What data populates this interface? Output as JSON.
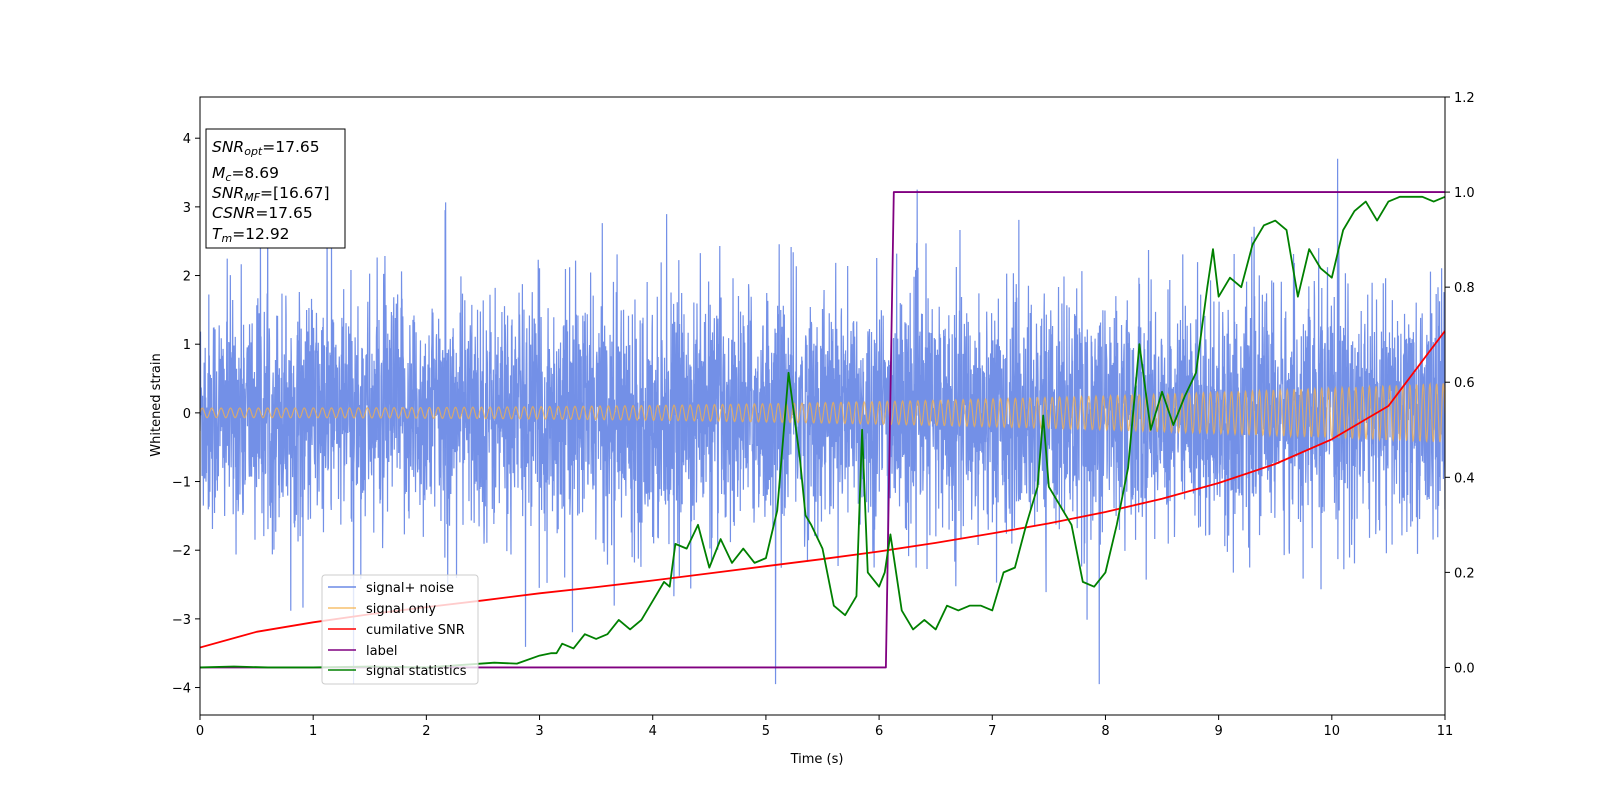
{
  "chart_data": {
    "type": "line",
    "title": "",
    "xlabel": "Time (s)",
    "ylabel": "Whitened strain",
    "xlim": [
      0,
      11
    ],
    "ylim_left": [
      -4.4,
      4.6
    ],
    "ylim_right": [
      -0.1,
      1.2
    ],
    "x_ticks": [
      0,
      1,
      2,
      3,
      4,
      5,
      6,
      7,
      8,
      9,
      10,
      11
    ],
    "y_ticks_left": [
      -4,
      -3,
      -2,
      -1,
      0,
      1,
      2,
      3,
      4
    ],
    "y_ticks_right": [
      0.0,
      0.2,
      0.4,
      0.6,
      0.8,
      1.0,
      1.2
    ],
    "grid": false,
    "legend_position": "lower-left",
    "series": [
      {
        "name": "signal+ noise",
        "axis": "left",
        "color": "#6b8ae6",
        "kind": "noise-band",
        "noise_std": 0.85,
        "noise_max": 3.7,
        "noise_min": -3.95
      },
      {
        "name": "signal only",
        "axis": "left",
        "color": "#f5b04a",
        "kind": "chirp",
        "amplitude_start": 0.07,
        "amplitude_end": 0.43,
        "frequency_start_hz": 12,
        "frequency_end_hz": 17
      },
      {
        "name": "cumilative SNR",
        "axis": "right",
        "color": "#ff0000",
        "kind": "line",
        "x": [
          0,
          0.5,
          1,
          1.5,
          2,
          2.5,
          3,
          3.5,
          4,
          4.5,
          5,
          5.5,
          6,
          6.5,
          7,
          7.5,
          8,
          8.5,
          9,
          9.5,
          10,
          10.5,
          11
        ],
        "y": [
          0.042,
          0.075,
          0.095,
          0.112,
          0.127,
          0.141,
          0.156,
          0.169,
          0.183,
          0.198,
          0.213,
          0.228,
          0.244,
          0.262,
          0.282,
          0.303,
          0.327,
          0.355,
          0.388,
          0.428,
          0.48,
          0.55,
          0.708
        ]
      },
      {
        "name": "label",
        "axis": "right",
        "color": "#800080",
        "kind": "line",
        "x": [
          0,
          6.06,
          6.13,
          11
        ],
        "y": [
          0,
          0,
          1,
          1
        ]
      },
      {
        "name": "signal statistics",
        "axis": "right",
        "color": "#008000",
        "kind": "line",
        "x": [
          0,
          0.3,
          0.6,
          1,
          1.5,
          2,
          2.3,
          2.6,
          2.8,
          3.0,
          3.1,
          3.15,
          3.2,
          3.3,
          3.4,
          3.5,
          3.6,
          3.7,
          3.8,
          3.9,
          4.0,
          4.1,
          4.15,
          4.2,
          4.3,
          4.4,
          4.5,
          4.6,
          4.7,
          4.8,
          4.9,
          5.0,
          5.1,
          5.2,
          5.3,
          5.35,
          5.4,
          5.5,
          5.6,
          5.7,
          5.8,
          5.85,
          5.9,
          6.0,
          6.05,
          6.1,
          6.2,
          6.3,
          6.4,
          6.5,
          6.6,
          6.7,
          6.8,
          6.9,
          7.0,
          7.1,
          7.2,
          7.3,
          7.4,
          7.45,
          7.5,
          7.6,
          7.7,
          7.8,
          7.9,
          8.0,
          8.1,
          8.2,
          8.3,
          8.4,
          8.5,
          8.6,
          8.7,
          8.8,
          8.9,
          8.95,
          9.0,
          9.1,
          9.2,
          9.3,
          9.4,
          9.5,
          9.6,
          9.7,
          9.8,
          9.9,
          10.0,
          10.1,
          10.2,
          10.3,
          10.4,
          10.5,
          10.6,
          10.7,
          10.8,
          10.9,
          11
        ],
        "y": [
          0,
          0.002,
          0,
          0,
          0.002,
          0,
          0.005,
          0.01,
          0.008,
          0.025,
          0.03,
          0.03,
          0.05,
          0.04,
          0.07,
          0.06,
          0.07,
          0.1,
          0.08,
          0.1,
          0.14,
          0.18,
          0.17,
          0.26,
          0.25,
          0.3,
          0.21,
          0.27,
          0.22,
          0.25,
          0.22,
          0.23,
          0.33,
          0.62,
          0.44,
          0.32,
          0.3,
          0.25,
          0.13,
          0.11,
          0.15,
          0.5,
          0.2,
          0.17,
          0.2,
          0.28,
          0.12,
          0.08,
          0.1,
          0.08,
          0.13,
          0.12,
          0.13,
          0.13,
          0.12,
          0.2,
          0.21,
          0.3,
          0.38,
          0.53,
          0.38,
          0.34,
          0.3,
          0.18,
          0.17,
          0.2,
          0.3,
          0.42,
          0.68,
          0.5,
          0.58,
          0.51,
          0.57,
          0.62,
          0.8,
          0.88,
          0.78,
          0.82,
          0.8,
          0.89,
          0.93,
          0.94,
          0.92,
          0.78,
          0.88,
          0.84,
          0.82,
          0.92,
          0.96,
          0.98,
          0.94,
          0.98,
          0.99,
          0.99,
          0.99,
          0.98,
          0.99
        ]
      }
    ],
    "annotation": {
      "snr_opt": {
        "base": "SNR",
        "sub": "opt",
        "value": "=17.65"
      },
      "mc": {
        "base": "M",
        "sub": "c",
        "value": "=8.69"
      },
      "snr_mf": {
        "base": "SNR",
        "sub": "MF",
        "value": "=[16.67]"
      },
      "csnr": {
        "base": "CSNR",
        "sub": "",
        "value": "=17.65"
      },
      "tm": {
        "base": "T",
        "sub": "m",
        "value": "=12.92"
      }
    }
  }
}
